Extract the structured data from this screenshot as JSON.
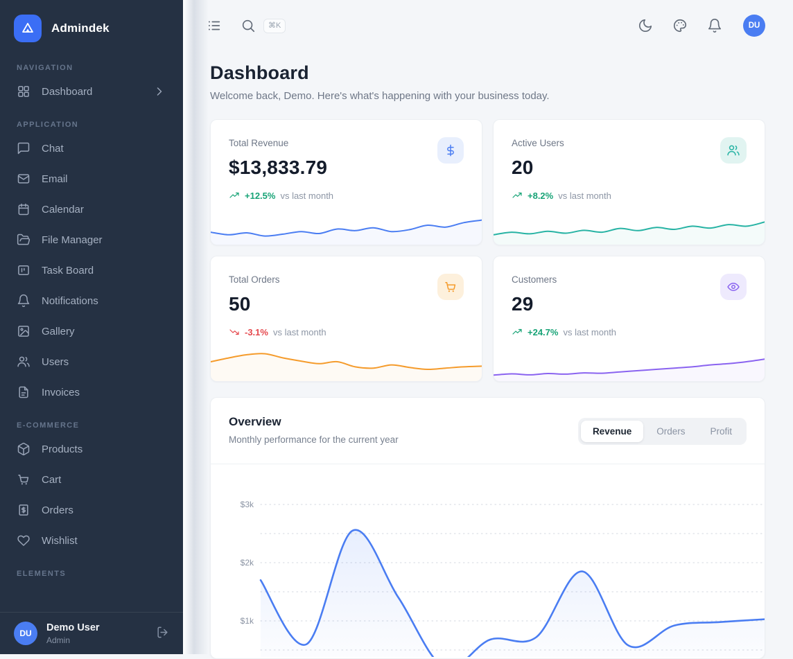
{
  "app": {
    "name": "Admindek"
  },
  "colors": {
    "sidebar_bg": "#253143",
    "brand_blue": "#3b6ef5",
    "avatar_blue": "#4a7df2",
    "positive_green": "#17a376",
    "negative_red": "#e5484d",
    "chart_blue": "#4a7df2",
    "teal": "#27b3a4",
    "orange": "#f59b2b",
    "purple": "#8a63f0",
    "page_bg": "#f4f6f9"
  },
  "sidebar": {
    "sections": [
      {
        "label": "NAVIGATION",
        "items": [
          {
            "label": "Dashboard",
            "icon": "dashboard",
            "chevron": true
          }
        ]
      },
      {
        "label": "APPLICATION",
        "items": [
          {
            "label": "Chat",
            "icon": "chat"
          },
          {
            "label": "Email",
            "icon": "email"
          },
          {
            "label": "Calendar",
            "icon": "calendar"
          },
          {
            "label": "File Manager",
            "icon": "folder-open"
          },
          {
            "label": "Task Board",
            "icon": "kanban"
          },
          {
            "label": "Notifications",
            "icon": "bell"
          },
          {
            "label": "Gallery",
            "icon": "image"
          },
          {
            "label": "Users",
            "icon": "users"
          },
          {
            "label": "Invoices",
            "icon": "file-text"
          }
        ]
      },
      {
        "label": "E-COMMERCE",
        "items": [
          {
            "label": "Products",
            "icon": "package"
          },
          {
            "label": "Cart",
            "icon": "cart"
          },
          {
            "label": "Orders",
            "icon": "receipt-dollar"
          },
          {
            "label": "Wishlist",
            "icon": "heart"
          }
        ]
      },
      {
        "label": "ELEMENTS",
        "items": []
      }
    ],
    "user": {
      "initials": "DU",
      "name": "Demo User",
      "role": "Admin"
    }
  },
  "header": {
    "shortcut": "⌘K",
    "avatar_initials": "DU"
  },
  "page": {
    "title": "Dashboard",
    "subtitle": "Welcome back, Demo. Here's what's happening with your business today."
  },
  "stats": [
    {
      "label": "Total Revenue",
      "value": "$13,833.79",
      "change": "+12.5%",
      "direction": "up",
      "suffix": "vs last month",
      "icon": "dollar",
      "color": "#4a7df2",
      "tile_bg": "#e8effd",
      "sparkline": [
        0.28,
        0.2,
        0.26,
        0.16,
        0.22,
        0.3,
        0.24,
        0.38,
        0.33,
        0.42,
        0.3,
        0.36,
        0.5,
        0.44,
        0.58,
        0.66
      ]
    },
    {
      "label": "Active Users",
      "value": "20",
      "change": "+8.2%",
      "direction": "up",
      "suffix": "vs last month",
      "icon": "users",
      "color": "#27b3a4",
      "tile_bg": "#e1f4f1",
      "sparkline": [
        0.2,
        0.28,
        0.23,
        0.31,
        0.25,
        0.34,
        0.28,
        0.4,
        0.33,
        0.43,
        0.37,
        0.47,
        0.41,
        0.52,
        0.47,
        0.6
      ]
    },
    {
      "label": "Total Orders",
      "value": "50",
      "change": "-3.1%",
      "direction": "down",
      "suffix": "vs last month",
      "icon": "cart",
      "color": "#f59b2b",
      "tile_bg": "#fdf0dc",
      "sparkline": [
        0.5,
        0.62,
        0.72,
        0.75,
        0.62,
        0.52,
        0.44,
        0.5,
        0.34,
        0.3,
        0.4,
        0.32,
        0.26,
        0.3,
        0.34,
        0.36
      ]
    },
    {
      "label": "Customers",
      "value": "29",
      "change": "+24.7%",
      "direction": "up",
      "suffix": "vs last month",
      "icon": "eye",
      "color": "#8a63f0",
      "tile_bg": "#eeeafd",
      "sparkline": [
        0.08,
        0.12,
        0.09,
        0.13,
        0.11,
        0.15,
        0.14,
        0.18,
        0.22,
        0.26,
        0.3,
        0.34,
        0.4,
        0.44,
        0.5,
        0.58
      ]
    }
  ],
  "overview": {
    "title": "Overview",
    "subtitle": "Monthly performance for the current year",
    "tabs": [
      "Revenue",
      "Orders",
      "Profit"
    ],
    "active_index": 0
  },
  "chart_data": {
    "type": "line",
    "title": "Overview",
    "series": [
      {
        "name": "Revenue",
        "values": [
          1700,
          600,
          2550,
          1400,
          200,
          680,
          720,
          1850,
          580,
          920,
          980,
          1030
        ]
      }
    ],
    "x_count": 12,
    "x_tick_labels_visible": false,
    "y_tick_labels": [
      "$3k",
      "$2k",
      "$1k"
    ],
    "y_tick_values": [
      3000,
      2000,
      1000
    ],
    "y_gridlines": [
      3000,
      2500,
      2000,
      1500,
      1000,
      500
    ],
    "ylim": [
      0,
      3200
    ],
    "grid": "dotted-horizontal",
    "line_color": "#4a7df2",
    "area_fill": true
  }
}
